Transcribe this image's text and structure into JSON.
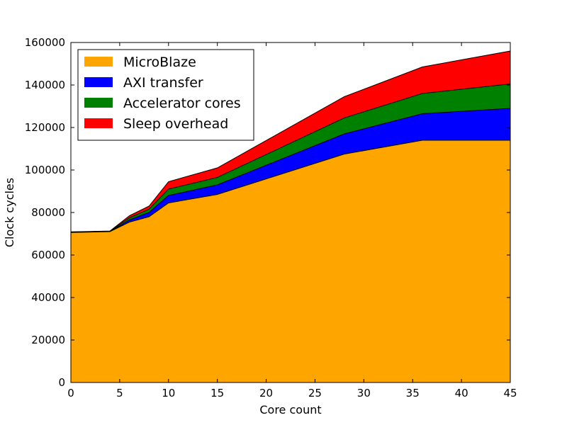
{
  "chart_data": {
    "type": "area",
    "stacked": true,
    "title": "",
    "xlabel": "Core count",
    "ylabel": "Clock cycles",
    "xlim": [
      0,
      45
    ],
    "ylim": [
      0,
      160000
    ],
    "x_ticks": [
      0,
      5,
      10,
      15,
      20,
      25,
      30,
      35,
      40,
      45
    ],
    "y_ticks": [
      0,
      20000,
      40000,
      60000,
      80000,
      100000,
      120000,
      140000,
      160000
    ],
    "grid": false,
    "legend_position": "top-left",
    "x": [
      0,
      4,
      6,
      8,
      10,
      15,
      28,
      36,
      45
    ],
    "series": [
      {
        "name": "MicroBlaze",
        "color": "#FFA500",
        "values": [
          70600,
          71000,
          75500,
          78000,
          84500,
          88500,
          107500,
          114000,
          114000
        ]
      },
      {
        "name": "AXI transfer",
        "color": "#0000FF",
        "values": [
          100,
          100,
          1000,
          2000,
          3500,
          4500,
          9500,
          12500,
          15000
        ]
      },
      {
        "name": "Accelerator cores",
        "color": "#008000",
        "values": [
          100,
          100,
          1000,
          1500,
          3000,
          3500,
          7500,
          9500,
          11500
        ]
      },
      {
        "name": "Sleep overhead",
        "color": "#FF0000",
        "values": [
          100,
          100,
          1000,
          1500,
          3500,
          4500,
          10000,
          12500,
          15500
        ]
      }
    ]
  }
}
